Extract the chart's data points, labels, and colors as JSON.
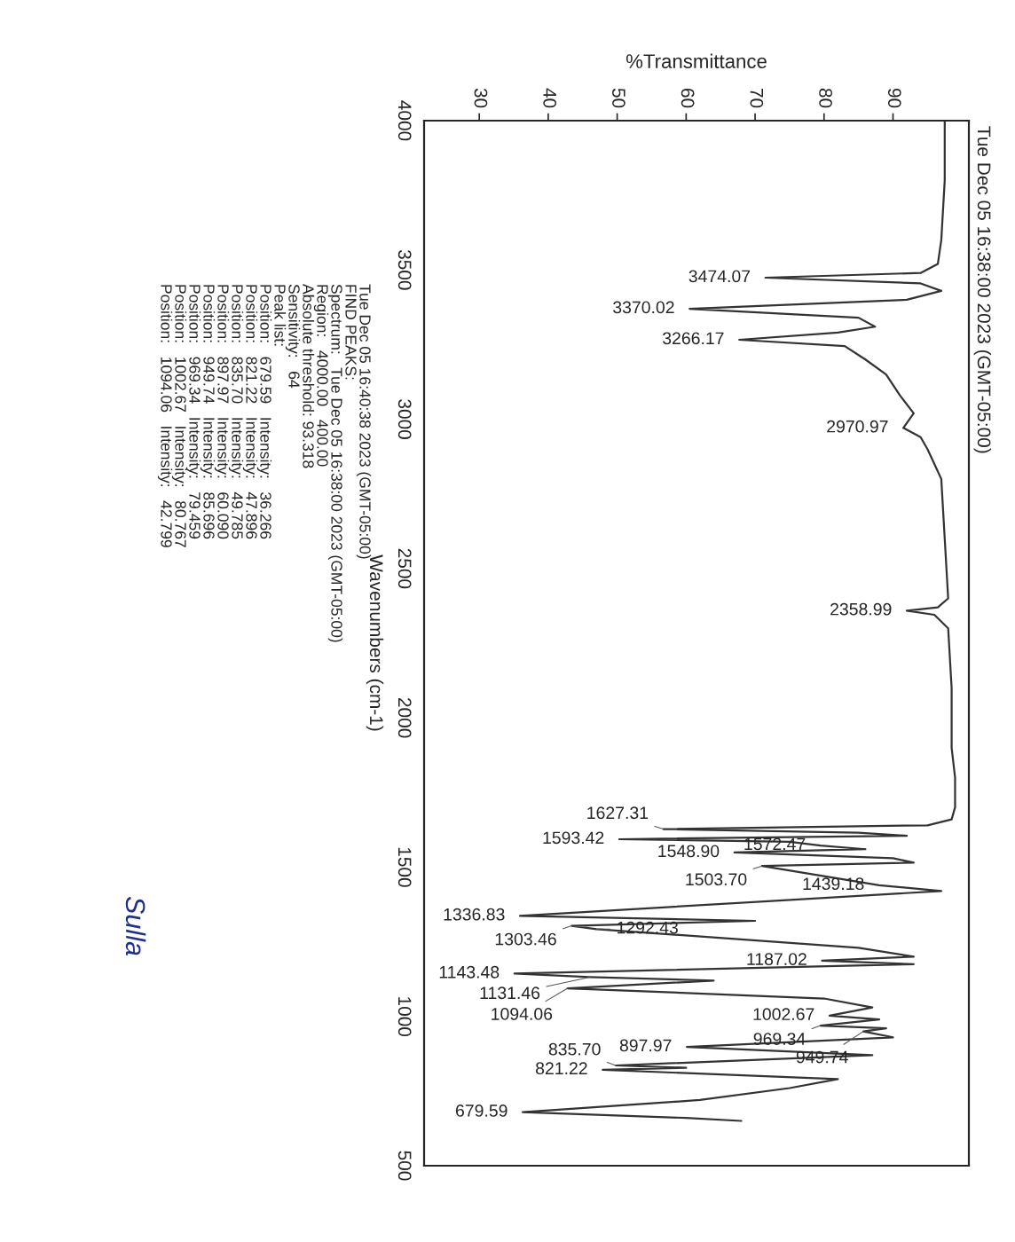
{
  "chart_data": {
    "type": "line",
    "title": "Tue Dec 05 16:38:00 2023 (GMT-05:00)",
    "xlabel": "%Transmittance",
    "ylabel": "Wavenumbers (cm-1)",
    "x": [
      97.5,
      97.5,
      97,
      96.5,
      94,
      71.5,
      94,
      97,
      92,
      60.5,
      85,
      87.4,
      82,
      67.7,
      83,
      86,
      89,
      91,
      93,
      91.5,
      94,
      95,
      96,
      97,
      97.5,
      98,
      96.5,
      92,
      96,
      98,
      98.5,
      98.5,
      99,
      99,
      98.5,
      95,
      56.7,
      85,
      92,
      50.3,
      75,
      79.5,
      86,
      67,
      90,
      93,
      71,
      88,
      97,
      35.9,
      70,
      43.4,
      47,
      85,
      93,
      79.7,
      93,
      35.1,
      46,
      64,
      42.8,
      80,
      87,
      80.8,
      88,
      79.5,
      89,
      85.7,
      90,
      60.1,
      87,
      49.8,
      60,
      47.9,
      82,
      75,
      62,
      36.3,
      60,
      68
    ],
    "values": [
      4000,
      3800,
      3600,
      3520,
      3490,
      3474.07,
      3455,
      3430,
      3400,
      3370.02,
      3340,
      3310,
      3290,
      3266.17,
      3245,
      3200,
      3150,
      3080,
      3020,
      2970.97,
      2940,
      2900,
      2850,
      2800,
      2600,
      2400,
      2370,
      2358.99,
      2345,
      2300,
      2100,
      1900,
      1800,
      1700,
      1660,
      1640,
      1627.31,
      1615,
      1605,
      1593.42,
      1585,
      1572.47,
      1560,
      1548.9,
      1530,
      1515,
      1503.7,
      1439.18,
      1420,
      1336.83,
      1320,
      1303.46,
      1292.43,
      1230,
      1200,
      1187.02,
      1175,
      1143.48,
      1131.46,
      1120,
      1094.06,
      1060,
      1030,
      1002.67,
      990,
      969.34,
      960,
      949.74,
      930,
      897.97,
      870,
      835.7,
      828,
      821.22,
      790,
      760,
      720,
      679.59,
      660,
      650
    ],
    "color": "#333333",
    "xlim": [
      22,
      101
    ],
    "ylim": [
      500,
      4000
    ],
    "xticks": [
      30,
      40,
      50,
      60,
      70,
      80,
      90
    ],
    "yticks": [
      4000,
      3500,
      3000,
      2500,
      2000,
      1500,
      1000,
      500
    ],
    "grid": false,
    "legend": false,
    "annotations": [
      {
        "text": "3474.07",
        "x": 71.5,
        "y": 3474.07
      },
      {
        "text": "3370.02",
        "x": 60.5,
        "y": 3370.02
      },
      {
        "text": "3266.17",
        "x": 67.7,
        "y": 3266.17
      },
      {
        "text": "2970.97",
        "x": 91.5,
        "y": 2970.97
      },
      {
        "text": "2358.99",
        "x": 92,
        "y": 2358.99
      },
      {
        "text": "1627.31",
        "x": 56.7,
        "y": 1627.31
      },
      {
        "text": "1593.42",
        "x": 50.3,
        "y": 1593.42
      },
      {
        "text": "1572.47",
        "x": 79.5,
        "y": 1572.47
      },
      {
        "text": "1548.90",
        "x": 67,
        "y": 1548.9
      },
      {
        "text": "1503.70",
        "x": 71,
        "y": 1503.7
      },
      {
        "text": "1439.18",
        "x": 88,
        "y": 1439.18
      },
      {
        "text": "1336.83",
        "x": 35.9,
        "y": 1336.83
      },
      {
        "text": "1303.46",
        "x": 43.4,
        "y": 1303.46
      },
      {
        "text": "1292.43",
        "x": 47,
        "y": 1292.43
      },
      {
        "text": "1187.02",
        "x": 79.7,
        "y": 1187.02
      },
      {
        "text": "1143.48",
        "x": 35.1,
        "y": 1143.48
      },
      {
        "text": "1131.46",
        "x": 46,
        "y": 1131.46
      },
      {
        "text": "1094.06",
        "x": 42.8,
        "y": 1094.06
      },
      {
        "text": "1002.67",
        "x": 80.8,
        "y": 1002.67
      },
      {
        "text": "969.34",
        "x": 79.5,
        "y": 969.34
      },
      {
        "text": "949.74",
        "x": 85.7,
        "y": 949.74
      },
      {
        "text": "897.97",
        "x": 60.1,
        "y": 897.97
      },
      {
        "text": "835.70",
        "x": 49.8,
        "y": 835.7
      },
      {
        "text": "821.22",
        "x": 47.9,
        "y": 821.22
      },
      {
        "text": "679.59",
        "x": 36.3,
        "y": 679.59
      },
      "Tue Dec 05 16:40:38 2023 (GMT-05:00)",
      "FIND PEAKS:",
      "Spectrum:   Tue Dec 05 16:38:00 2023 (GMT-05:00)",
      "Region:   4000.00   400.00",
      "Absolute threshold: 93.318",
      "Sensitivity:   64",
      "Peak list:",
      "Position:   679.59   Intensity:   36.266",
      "Position:   821.22   Intensity:   47.896",
      "Position:   835.70   Intensity:   49.785",
      "Position:   897.97   Intensity:   60.090",
      "Position:   949.74   Intensity:   85.696",
      "Position:   969.34   Intensity:   79.459",
      "Position:   1002.67   Intensity:   80.767",
      "Position:   1094.06   Intensity:   42.799",
      "Sulla"
    ]
  }
}
